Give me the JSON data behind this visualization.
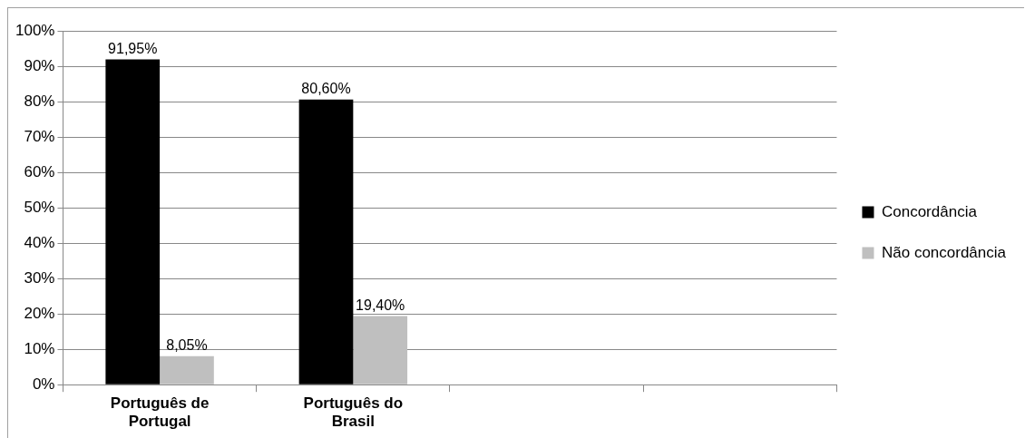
{
  "chart_data": {
    "type": "bar",
    "categories": [
      "Português de Portugal",
      "Português do Brasil",
      null,
      null
    ],
    "series": [
      {
        "name": "Concordância",
        "color": "#000000",
        "values": [
          91.95,
          80.6,
          null,
          null
        ],
        "value_labels": [
          "91,95%",
          "80,60%",
          null,
          null
        ]
      },
      {
        "name": "Não concordância",
        "color": "#bfbfbf",
        "values": [
          8.05,
          19.4,
          null,
          null
        ],
        "value_labels": [
          "8,05%",
          "19,40%",
          null,
          null
        ]
      }
    ],
    "ylim": [
      0,
      100
    ],
    "yticks": [
      {
        "value": 0,
        "label": "0%"
      },
      {
        "value": 10,
        "label": "10%"
      },
      {
        "value": 20,
        "label": "20%"
      },
      {
        "value": 30,
        "label": "30%"
      },
      {
        "value": 40,
        "label": "40%"
      },
      {
        "value": 50,
        "label": "50%"
      },
      {
        "value": 60,
        "label": "60%"
      },
      {
        "value": 70,
        "label": "70%"
      },
      {
        "value": 80,
        "label": "80%"
      },
      {
        "value": 90,
        "label": "90%"
      },
      {
        "value": 100,
        "label": "100%"
      }
    ],
    "grid": "y",
    "legend": "right"
  }
}
